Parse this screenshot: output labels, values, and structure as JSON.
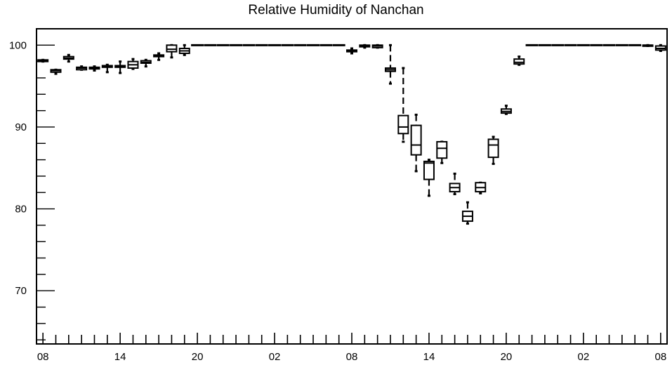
{
  "chart_data": {
    "type": "boxplot",
    "title": "Relative Humidity of Nanchan",
    "xlabel": "",
    "ylabel": "",
    "ylim": [
      63.5,
      102
    ],
    "y_ticks": [
      70,
      80,
      90,
      100
    ],
    "x_range": [
      -0.5,
      48.5
    ],
    "x_tick_labels": [
      {
        "x": 0,
        "label": "08"
      },
      {
        "x": 6,
        "label": "14"
      },
      {
        "x": 12,
        "label": "20"
      },
      {
        "x": 18,
        "label": "02"
      },
      {
        "x": 24,
        "label": "08"
      },
      {
        "x": 30,
        "label": "14"
      },
      {
        "x": 36,
        "label": "20"
      },
      {
        "x": 42,
        "label": "02"
      },
      {
        "x": 48,
        "label": "08"
      }
    ],
    "boxes": [
      {
        "x": 0,
        "min": 98.0,
        "q1": 98.0,
        "median": 98.1,
        "q3": 98.2,
        "max": 98.2
      },
      {
        "x": 1,
        "min": 96.5,
        "q1": 96.7,
        "median": 96.9,
        "q3": 97.0,
        "max": 97.0
      },
      {
        "x": 2,
        "min": 98.0,
        "q1": 98.3,
        "median": 98.4,
        "q3": 98.6,
        "max": 98.8
      },
      {
        "x": 3,
        "min": 97.0,
        "q1": 97.0,
        "median": 97.2,
        "q3": 97.3,
        "max": 97.4
      },
      {
        "x": 4,
        "min": 96.9,
        "q1": 97.1,
        "median": 97.2,
        "q3": 97.3,
        "max": 97.4
      },
      {
        "x": 5,
        "min": 96.7,
        "q1": 97.3,
        "median": 97.4,
        "q3": 97.5,
        "max": 97.6
      },
      {
        "x": 6,
        "min": 96.6,
        "q1": 97.3,
        "median": 97.4,
        "q3": 97.5,
        "max": 98.0
      },
      {
        "x": 7,
        "min": 97.1,
        "q1": 97.2,
        "median": 97.6,
        "q3": 98.0,
        "max": 98.3
      },
      {
        "x": 8,
        "min": 97.4,
        "q1": 97.8,
        "median": 97.9,
        "q3": 98.1,
        "max": 98.2
      },
      {
        "x": 9,
        "min": 98.2,
        "q1": 98.6,
        "median": 98.7,
        "q3": 98.8,
        "max": 99.0
      },
      {
        "x": 10,
        "min": 98.5,
        "q1": 99.2,
        "median": 99.5,
        "q3": 100.0,
        "max": 100.0
      },
      {
        "x": 11,
        "min": 98.8,
        "q1": 99.0,
        "median": 99.3,
        "q3": 99.6,
        "max": 100.0
      },
      {
        "x": 12,
        "min": 100,
        "q1": 100,
        "median": 100,
        "q3": 100,
        "max": 100
      },
      {
        "x": 13,
        "min": 100,
        "q1": 100,
        "median": 100,
        "q3": 100,
        "max": 100
      },
      {
        "x": 14,
        "min": 100,
        "q1": 100,
        "median": 100,
        "q3": 100,
        "max": 100
      },
      {
        "x": 15,
        "min": 100,
        "q1": 100,
        "median": 100,
        "q3": 100,
        "max": 100
      },
      {
        "x": 16,
        "min": 100,
        "q1": 100,
        "median": 100,
        "q3": 100,
        "max": 100
      },
      {
        "x": 17,
        "min": 100,
        "q1": 100,
        "median": 100,
        "q3": 100,
        "max": 100
      },
      {
        "x": 18,
        "min": 100,
        "q1": 100,
        "median": 100,
        "q3": 100,
        "max": 100
      },
      {
        "x": 19,
        "min": 100,
        "q1": 100,
        "median": 100,
        "q3": 100,
        "max": 100
      },
      {
        "x": 20,
        "min": 100,
        "q1": 100,
        "median": 100,
        "q3": 100,
        "max": 100
      },
      {
        "x": 21,
        "min": 100,
        "q1": 100,
        "median": 100,
        "q3": 100,
        "max": 100
      },
      {
        "x": 22,
        "min": 100,
        "q1": 100,
        "median": 100,
        "q3": 100,
        "max": 100
      },
      {
        "x": 23,
        "min": 100,
        "q1": 100,
        "median": 100,
        "q3": 100,
        "max": 100
      },
      {
        "x": 24,
        "min": 99.0,
        "q1": 99.2,
        "median": 99.3,
        "q3": 99.4,
        "max": 99.6
      },
      {
        "x": 25,
        "min": 99.7,
        "q1": 99.8,
        "median": 99.9,
        "q3": 100.0,
        "max": 100.0
      },
      {
        "x": 26,
        "min": 99.7,
        "q1": 99.7,
        "median": 99.9,
        "q3": 100.0,
        "max": 100.0
      },
      {
        "x": 27,
        "min": 95.3,
        "q1": 96.8,
        "median": 97.0,
        "q3": 97.2,
        "max": 100.0
      },
      {
        "x": 28,
        "min": 88.2,
        "q1": 89.2,
        "median": 90.0,
        "q3": 91.4,
        "max": 97.2
      },
      {
        "x": 29,
        "min": 84.6,
        "q1": 86.6,
        "median": 87.8,
        "q3": 90.2,
        "max": 91.5
      },
      {
        "x": 30,
        "min": 81.6,
        "q1": 83.6,
        "median": 85.6,
        "q3": 85.8,
        "max": 86.0
      },
      {
        "x": 31,
        "min": 85.6,
        "q1": 86.2,
        "median": 87.4,
        "q3": 88.2,
        "max": 88.2
      },
      {
        "x": 32,
        "min": 81.8,
        "q1": 82.1,
        "median": 82.6,
        "q3": 83.1,
        "max": 84.3
      },
      {
        "x": 33,
        "min": 78.2,
        "q1": 78.5,
        "median": 79.1,
        "q3": 79.7,
        "max": 80.8
      },
      {
        "x": 34,
        "min": 81.9,
        "q1": 82.1,
        "median": 82.6,
        "q3": 83.2,
        "max": 83.2
      },
      {
        "x": 35,
        "min": 85.5,
        "q1": 86.3,
        "median": 87.8,
        "q3": 88.5,
        "max": 88.8
      },
      {
        "x": 36,
        "min": 91.6,
        "q1": 91.7,
        "median": 91.9,
        "q3": 92.2,
        "max": 92.6
      },
      {
        "x": 37,
        "min": 97.6,
        "q1": 97.7,
        "median": 97.9,
        "q3": 98.3,
        "max": 98.6
      },
      {
        "x": 38,
        "min": 100,
        "q1": 100,
        "median": 100,
        "q3": 100,
        "max": 100
      },
      {
        "x": 39,
        "min": 100,
        "q1": 100,
        "median": 100,
        "q3": 100,
        "max": 100
      },
      {
        "x": 40,
        "min": 100,
        "q1": 100,
        "median": 100,
        "q3": 100,
        "max": 100
      },
      {
        "x": 41,
        "min": 100,
        "q1": 100,
        "median": 100,
        "q3": 100,
        "max": 100
      },
      {
        "x": 42,
        "min": 100,
        "q1": 100,
        "median": 100,
        "q3": 100,
        "max": 100
      },
      {
        "x": 43,
        "min": 100,
        "q1": 100,
        "median": 100,
        "q3": 100,
        "max": 100
      },
      {
        "x": 44,
        "min": 100,
        "q1": 100,
        "median": 100,
        "q3": 100,
        "max": 100
      },
      {
        "x": 45,
        "min": 100,
        "q1": 100,
        "median": 100,
        "q3": 100,
        "max": 100
      },
      {
        "x": 46,
        "min": 100,
        "q1": 100,
        "median": 100,
        "q3": 100,
        "max": 100
      },
      {
        "x": 47,
        "min": 99.9,
        "q1": 99.9,
        "median": 100,
        "q3": 100,
        "max": 100
      },
      {
        "x": 48,
        "min": 99.3,
        "q1": 99.4,
        "median": 99.6,
        "q3": 99.9,
        "max": 100.0
      }
    ],
    "grid": false,
    "legend": "none"
  }
}
